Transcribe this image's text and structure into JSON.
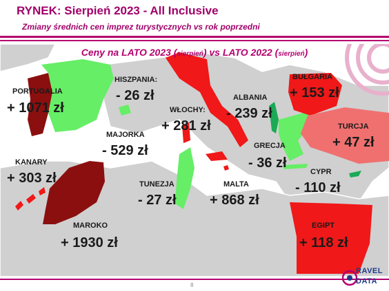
{
  "header": {
    "title": "RYNEK: Sierpień 2023 - All Inclusive",
    "subtitle": "Zmiany średnich cen imprez turystycznych vs rok poprzedni"
  },
  "heading": {
    "part1": "Ceny na LATO 2023 (",
    "small1": "sierpień",
    "part2": ") vs  LATO 2022 (",
    "small2": "sierpień",
    "part3": ")"
  },
  "countries": {
    "portugalia": {
      "name": "PORTUGALIA",
      "value": "+ 1071 zł"
    },
    "hiszpania": {
      "name": "HISZPANIA:",
      "value": "- 26 zł"
    },
    "wlochy": {
      "name": "WŁOCHY:",
      "value": "+ 281 zł"
    },
    "albania": {
      "name": "ALBANIA",
      "value": "- 239 zł"
    },
    "bulgaria": {
      "name": "BUŁGARIA",
      "value": "+ 153 zł"
    },
    "turcja": {
      "name": "TURCJA",
      "value": "+ 47 zł"
    },
    "majorka": {
      "name": "MAJORKA",
      "value": "- 529 zł"
    },
    "kanary": {
      "name": "KANARY",
      "value": "+ 303 zł"
    },
    "grecja": {
      "name": "GRECJA",
      "value": "- 36 zł"
    },
    "cypr": {
      "name": "CYPR",
      "value": "- 110 zł"
    },
    "tunezja": {
      "name": "TUNEZJA",
      "value": "- 27 zł"
    },
    "malta": {
      "name": "MALTA",
      "value": "+ 868 zł"
    },
    "maroko": {
      "name": "MAROKO",
      "value": "+ 1930 zł"
    },
    "egipt": {
      "name": "EGIPT",
      "value": "+ 118 zł"
    }
  },
  "colors": {
    "brand": "#b4006e",
    "increase_strong": "#8b0f0f",
    "increase": "#f01818",
    "increase_light": "#f07070",
    "decrease": "#66ee66",
    "decrease_dark": "#1aaa55",
    "land": "#d0d0d0"
  },
  "footer": {
    "page": "8"
  },
  "logo": {
    "line1": "RAVEL",
    "line2": "DATA"
  }
}
